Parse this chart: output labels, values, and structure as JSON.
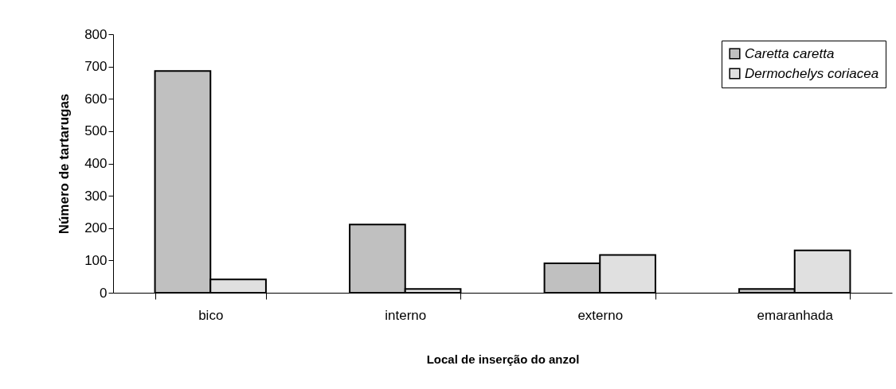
{
  "chart_data": {
    "type": "bar",
    "xlabel": "Local de inserção do anzol",
    "ylabel": "Número de tartarugas",
    "categories": [
      "bico",
      "interno",
      "externo",
      "emaranhada"
    ],
    "series": [
      {
        "name": "Caretta caretta",
        "color": "#c0c0c0",
        "values": [
          686,
          211,
          91,
          12
        ]
      },
      {
        "name": "Dermochelys coriacea",
        "color": "#e0e0e0",
        "values": [
          41,
          12,
          117,
          131
        ]
      }
    ],
    "ylim": [
      0,
      800
    ],
    "yticks": [
      0,
      100,
      200,
      300,
      400,
      500,
      600,
      700,
      800
    ],
    "legend": "top right"
  }
}
